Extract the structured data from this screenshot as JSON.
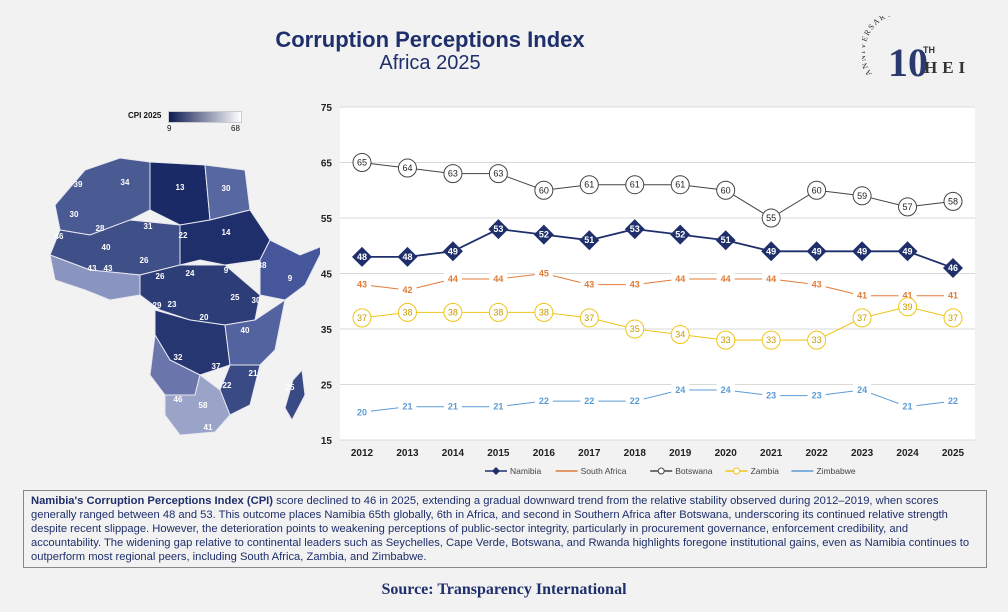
{
  "header": {
    "title": "Corruption Perceptions Index",
    "subtitle": "Africa 2025"
  },
  "logo": {
    "arc_text": "ANNIVERSARY",
    "number": "10",
    "suffix": "TH",
    "name": "HEI"
  },
  "map_legend": {
    "label": "CPI 2025",
    "min": "9",
    "max": "68",
    "color_low": "#0e1a52",
    "color_high": "#ffffff"
  },
  "map_labels": [
    "39",
    "34",
    "13",
    "30",
    "30",
    "28",
    "31",
    "22",
    "14",
    "46",
    "40",
    "26",
    "43",
    "43",
    "24",
    "9",
    "38",
    "9",
    "26",
    "29",
    "23",
    "25",
    "30",
    "20",
    "40",
    "32",
    "37",
    "21",
    "22",
    "25",
    "46",
    "58",
    "41"
  ],
  "chart_data": {
    "type": "line",
    "x": [
      2012,
      2013,
      2014,
      2015,
      2016,
      2017,
      2018,
      2019,
      2020,
      2021,
      2022,
      2023,
      2024,
      2025
    ],
    "ylim": [
      15,
      75
    ],
    "yticks": [
      15,
      25,
      35,
      45,
      55,
      65,
      75
    ],
    "series": [
      {
        "name": "Namibia",
        "color": "#1f2f6b",
        "marker": "diamond",
        "values": [
          48,
          48,
          49,
          53,
          52,
          51,
          53,
          52,
          51,
          49,
          49,
          49,
          49,
          46
        ]
      },
      {
        "name": "South Africa",
        "color": "#e07b39",
        "marker": "dash",
        "values": [
          43,
          42,
          44,
          44,
          45,
          43,
          43,
          44,
          44,
          44,
          43,
          41,
          41,
          41
        ]
      },
      {
        "name": "Botswana",
        "color": "#444444",
        "marker": "circle",
        "values": [
          65,
          64,
          63,
          63,
          60,
          61,
          61,
          61,
          60,
          55,
          60,
          59,
          57,
          58
        ]
      },
      {
        "name": "Zambia",
        "color": "#f0c419",
        "marker": "circle",
        "values": [
          37,
          38,
          38,
          38,
          38,
          37,
          35,
          34,
          33,
          33,
          33,
          37,
          39,
          37
        ]
      },
      {
        "name": "Zimbabwe",
        "color": "#5b9bd5",
        "marker": "dash",
        "values": [
          20,
          21,
          21,
          21,
          22,
          22,
          22,
          24,
          24,
          23,
          23,
          24,
          21,
          22
        ]
      }
    ]
  },
  "summary": {
    "bold_lead": "Namibia's Corruption Perceptions Index (CPI)",
    "text": " score declined to 46 in 2025, extending a gradual downward trend from the relative stability observed during 2012–2019, when scores generally ranged between 48 and 53. This outcome places Namibia 65th globally, 6th in Africa, and second in Southern Africa after Botswana, underscoring its continued relative strength despite recent slippage. However, the deterioration points to weakening perceptions of public-sector integrity, particularly in procurement governance, enforcement credibility, and accountability. The widening gap relative to continental leaders such as Seychelles, Cape Verde, Botswana, and Rwanda highlights foregone institutional gains, even as Namibia continues to outperform most regional peers, including South Africa, Zambia, and Zimbabwe."
  },
  "source": "Source: Transparency International"
}
